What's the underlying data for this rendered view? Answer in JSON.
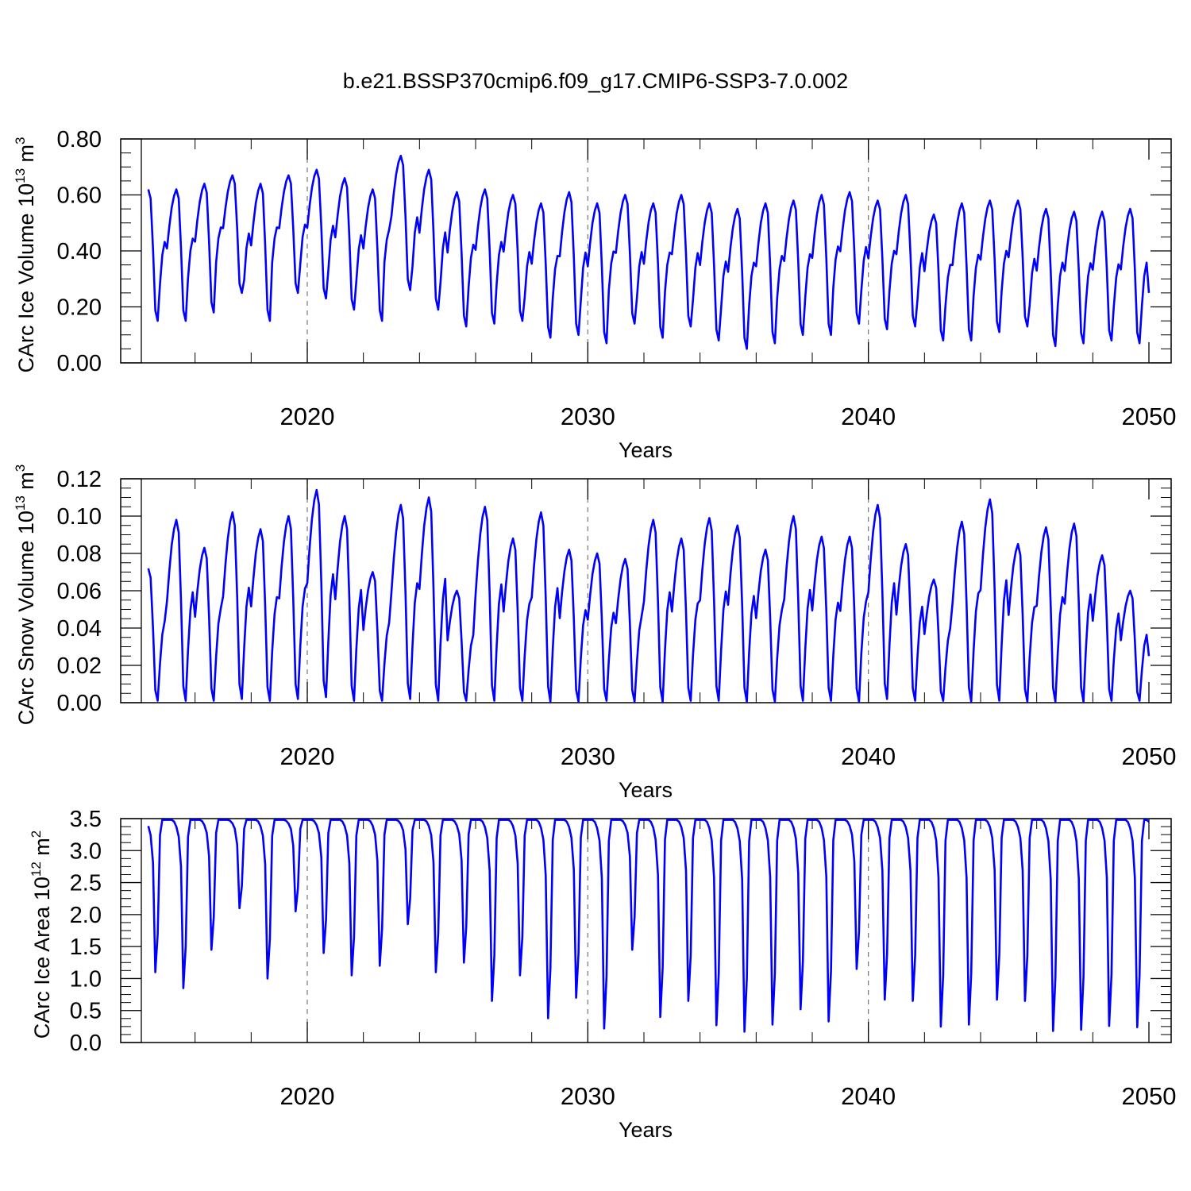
{
  "title": "b.e21.BSSP370cmip6.f09_g17.CMIP6-SSP3-7.0.002",
  "colors": {
    "series": "#0000ff",
    "frame": "#000000",
    "reference_lines": "#777777"
  },
  "chart_data": [
    {
      "type": "line",
      "ylabel": "CArc Ice Volume 10",
      "ylabel_exp": "13",
      "ylabel_unit": " m",
      "ylabel_unit_exp": "3",
      "xlabel": "Years",
      "xlim": [
        2014.1,
        2050.1
      ],
      "ylim": [
        0,
        0.8
      ],
      "yticks": [
        "0.00",
        "0.20",
        "0.40",
        "0.60",
        "0.80"
      ],
      "xticks": [
        "2020",
        "2030",
        "2040",
        "2050"
      ],
      "reference_lines_x": [
        2020,
        2030,
        2040
      ],
      "grid": false,
      "legend": "none",
      "series": [
        {
          "start_year": 2014.0,
          "step": 0.0833333,
          "cycle_max": [
            0.62,
            0.62,
            0.64,
            0.67,
            0.64,
            0.67,
            0.69,
            0.66,
            0.62,
            0.74,
            0.69,
            0.61,
            0.62,
            0.6,
            0.57,
            0.61,
            0.57,
            0.6,
            0.57,
            0.6,
            0.57,
            0.55,
            0.57,
            0.58,
            0.6,
            0.61,
            0.58,
            0.6,
            0.53,
            0.57,
            0.58,
            0.58,
            0.55,
            0.54,
            0.54,
            0.55
          ],
          "cycle_min": [
            0.15,
            0.15,
            0.18,
            0.25,
            0.15,
            0.25,
            0.23,
            0.19,
            0.15,
            0.26,
            0.19,
            0.13,
            0.14,
            0.15,
            0.09,
            0.1,
            0.07,
            0.14,
            0.09,
            0.13,
            0.08,
            0.05,
            0.07,
            0.1,
            0.1,
            0.14,
            0.12,
            0.13,
            0.08,
            0.08,
            0.11,
            0.13,
            0.06,
            0.07,
            0.08,
            0.07
          ],
          "end_value": 0.25
        }
      ]
    },
    {
      "type": "line",
      "ylabel": "CArc Snow Volume 10",
      "ylabel_exp": "13",
      "ylabel_unit": " m",
      "ylabel_unit_exp": "3",
      "xlabel": "Years",
      "xlim": [
        2014.1,
        2050.1
      ],
      "ylim": [
        0,
        0.12
      ],
      "yticks": [
        "0.00",
        "0.02",
        "0.04",
        "0.06",
        "0.08",
        "0.10",
        "0.12"
      ],
      "xticks": [
        "2020",
        "2030",
        "2040",
        "2050"
      ],
      "reference_lines_x": [
        2020,
        2030,
        2040
      ],
      "grid": false,
      "legend": "none",
      "series": [
        {
          "start_year": 2014.0,
          "step": 0.0833333,
          "cycle_max": [
            0.072,
            0.098,
            0.083,
            0.102,
            0.093,
            0.1,
            0.114,
            0.1,
            0.07,
            0.106,
            0.11,
            0.06,
            0.105,
            0.088,
            0.102,
            0.082,
            0.08,
            0.077,
            0.098,
            0.088,
            0.099,
            0.095,
            0.082,
            0.1,
            0.089,
            0.089,
            0.106,
            0.085,
            0.066,
            0.097,
            0.109,
            0.085,
            0.094,
            0.096,
            0.079,
            0.06
          ],
          "cycle_min": [
            0.001,
            0.001,
            0.001,
            0.002,
            0.001,
            0.002,
            0.003,
            0.001,
            0.001,
            0.002,
            0.001,
            0.001,
            0.001,
            0.001,
            0.0005,
            0.0005,
            0.001,
            0.0005,
            0.0005,
            0.001,
            0.001,
            0.0005,
            0.0005,
            0.001,
            0.001,
            0.0005,
            0.002,
            0.001,
            0.001,
            0.0005,
            0.001,
            0.0005,
            0.0005,
            0.0005,
            0.001,
            0.001
          ],
          "end_value": 0.025
        }
      ]
    },
    {
      "type": "line",
      "ylabel": "CArc Ice Area 10",
      "ylabel_exp": "12",
      "ylabel_unit": " m",
      "ylabel_unit_exp": "2",
      "xlabel": "Years",
      "xlim": [
        2014.1,
        2050.1
      ],
      "ylim": [
        0,
        3.5
      ],
      "yticks": [
        "0.0",
        "0.5",
        "1.0",
        "1.5",
        "2.0",
        "2.5",
        "3.0",
        "3.5"
      ],
      "xticks": [
        "2020",
        "2030",
        "2040",
        "2050"
      ],
      "reference_lines_x": [
        2020,
        2030,
        2040
      ],
      "grid": false,
      "legend": "none",
      "series": [
        {
          "start_year": 2014.0,
          "step": 0.0833333,
          "cycle_max": [
            3.48,
            3.48,
            3.48,
            3.48,
            3.48,
            3.48,
            3.48,
            3.48,
            3.48,
            3.48,
            3.48,
            3.48,
            3.48,
            3.48,
            3.48,
            3.48,
            3.48,
            3.48,
            3.48,
            3.48,
            3.48,
            3.48,
            3.48,
            3.48,
            3.48,
            3.48,
            3.48,
            3.48,
            3.48,
            3.48,
            3.48,
            3.48,
            3.48,
            3.48,
            3.48,
            3.48
          ],
          "cycle_min": [
            1.1,
            0.85,
            1.45,
            2.1,
            1.0,
            2.05,
            1.4,
            1.05,
            1.2,
            1.85,
            1.1,
            1.25,
            0.65,
            1.05,
            0.38,
            0.7,
            0.22,
            1.45,
            0.4,
            0.65,
            0.27,
            0.17,
            0.28,
            0.52,
            0.33,
            1.15,
            0.67,
            0.65,
            0.25,
            0.28,
            0.67,
            0.65,
            0.18,
            0.2,
            0.26,
            0.24
          ],
          "end_value": 3.45
        }
      ]
    }
  ]
}
